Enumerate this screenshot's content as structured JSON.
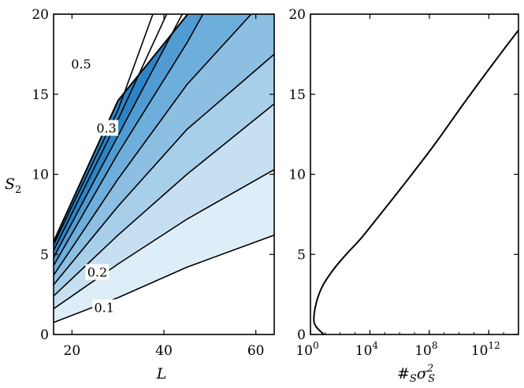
{
  "chart_data": [
    {
      "type": "contour",
      "xlabel": "L",
      "ylabel": "S",
      "ylabel_sub": "2",
      "xlim": [
        16,
        64
      ],
      "ylim": [
        0,
        20
      ],
      "xticks": [
        20,
        40,
        60
      ],
      "yticks": [
        0,
        5,
        10,
        15,
        20
      ],
      "fill_colors": [
        "#ffffff",
        "#deeef8",
        "#c7e0f1",
        "#a8cfe9",
        "#8cbfe2",
        "#6eaedb",
        "#509cd2",
        "#2c84c6"
      ],
      "contour_lines": [
        {
          "level": 0.1,
          "points": [
            [
              16,
              0.75
            ],
            [
              30,
              2.3
            ],
            [
              45,
              4.2
            ],
            [
              64,
              6.2
            ]
          ]
        },
        {
          "level": 0.2,
          "points": [
            [
              16,
              1.6
            ],
            [
              30,
              4.4
            ],
            [
              45,
              7.2
            ],
            [
              64,
              10.3
            ]
          ]
        },
        {
          "level": 0.25,
          "points": [
            [
              16,
              2.4
            ],
            [
              30,
              6.2
            ],
            [
              45,
              10.0
            ],
            [
              64,
              14.4
            ]
          ]
        },
        {
          "level": 0.3,
          "points": [
            [
              16,
              3.1
            ],
            [
              30,
              8.0
            ],
            [
              45,
              12.8
            ],
            [
              64,
              17.5
            ]
          ]
        },
        {
          "level": 0.35,
          "points": [
            [
              16,
              3.7
            ],
            [
              30,
              9.7
            ],
            [
              45,
              15.6
            ],
            [
              59,
              20
            ]
          ]
        },
        {
          "level": 0.4,
          "points": [
            [
              16,
              4.3
            ],
            [
              30,
              11.3
            ],
            [
              45,
              18.2
            ],
            [
              48.5,
              20
            ]
          ]
        },
        {
          "level": 0.45,
          "points": [
            [
              16,
              4.8
            ],
            [
              30,
              12.4
            ],
            [
              44,
              20
            ]
          ]
        },
        {
          "level": 0.5,
          "points": [
            [
              16,
              5.25
            ],
            [
              30,
              13.4
            ],
            [
              40.6,
              20
            ]
          ]
        },
        {
          "level": 0.55,
          "points": [
            [
              16,
              5.6
            ],
            [
              30,
              14.0
            ],
            [
              37.6,
              20
            ]
          ]
        }
      ],
      "boundary": [
        [
          16,
          5.8
        ],
        [
          30,
          14.6
        ],
        [
          45.2,
          20
        ]
      ],
      "contour_labels": [
        {
          "text": "0.1",
          "x": 27,
          "y": 1.7
        },
        {
          "text": "0.2",
          "x": 25.5,
          "y": 3.9
        },
        {
          "text": "0.3",
          "x": 27.5,
          "y": 12.9
        },
        {
          "text": "0.5",
          "x": 22,
          "y": 16.9
        }
      ]
    },
    {
      "type": "line",
      "xlabel": "#",
      "xlabel_sub": "S",
      "xlabel_mid": "σ",
      "xlabel_sup": "2",
      "xscale": "log",
      "xlim_log10": [
        0,
        14
      ],
      "ylim": [
        0,
        20
      ],
      "xticks": [
        {
          "base": "10",
          "exp": "0",
          "log10": 0
        },
        {
          "base": "10",
          "exp": "4",
          "log10": 4
        },
        {
          "base": "10",
          "exp": "8",
          "log10": 8
        },
        {
          "base": "10",
          "exp": "12",
          "log10": 12
        }
      ],
      "yticks": [
        0,
        5,
        10,
        15,
        20
      ],
      "series": [
        {
          "log10_x": [
            0.9,
            0.37,
            0.23,
            0.4,
            0.8,
            1.5,
            2.4,
            3.4,
            4.7,
            6.4,
            8.3,
            10.3,
            12.2,
            14.0
          ],
          "y": [
            0,
            0.5,
            1.0,
            2.0,
            3.0,
            4.0,
            5.0,
            6.0,
            7.5,
            9.5,
            11.8,
            14.4,
            16.8,
            19.0
          ]
        }
      ]
    }
  ]
}
